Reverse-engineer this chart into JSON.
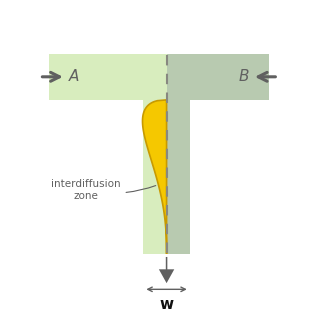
{
  "fig_width": 3.1,
  "fig_height": 3.32,
  "dpi": 100,
  "bg_color": "#ffffff",
  "light_green": "#d8edbe",
  "dark_green": "#b8cab0",
  "yellow": "#f5c800",
  "yellow_outline": "#c89a00",
  "dashed_line_color": "#888880",
  "arrow_color": "#606060",
  "text_color": "#606060",
  "label_A": "A",
  "label_B": "B",
  "label_w": "w",
  "annotation": "interdiffusion\nzone"
}
